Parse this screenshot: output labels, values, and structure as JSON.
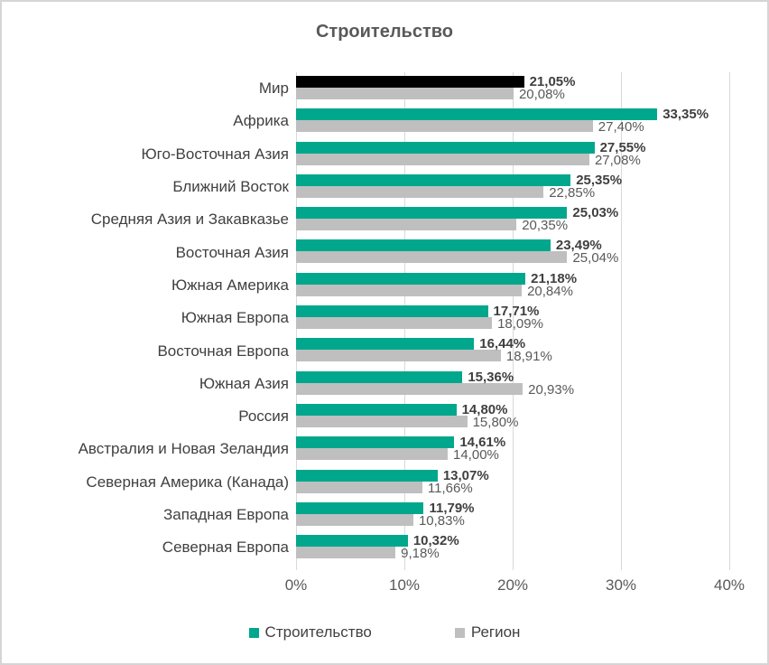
{
  "window": {
    "background": "#ffffff",
    "border_color": "#d6d4d4"
  },
  "chart_data": {
    "type": "bar",
    "orientation": "horizontal",
    "title": "Строительство",
    "title_color": "#595959",
    "grid": true,
    "legend_position": "bottom",
    "xlim": [
      0,
      40
    ],
    "x_ticks": [
      {
        "value": 0,
        "label": "0%"
      },
      {
        "value": 10,
        "label": "10%"
      },
      {
        "value": 20,
        "label": "20%"
      },
      {
        "value": 30,
        "label": "30%"
      },
      {
        "value": 40,
        "label": "40%"
      }
    ],
    "categories": [
      "Мир",
      "Африка",
      "Юго-Восточная Азия",
      "Ближний Восток",
      "Средняя Азия и Закавказье",
      "Восточная Азия",
      "Южная Америка",
      "Южная Европа",
      "Восточная Европа",
      "Южная Азия",
      "Россия",
      "Австралия и Новая Зеландия",
      "Северная Америка (Канада)",
      "Западная Европа",
      "Северная Европа"
    ],
    "series": [
      {
        "name": "Строительство",
        "color": "#00A78C",
        "values": [
          21.05,
          33.35,
          27.55,
          25.35,
          25.03,
          23.49,
          21.18,
          17.71,
          16.44,
          15.36,
          14.8,
          14.61,
          13.07,
          11.79,
          10.32
        ],
        "labels": [
          "21,05%",
          "33,35%",
          "27,55%",
          "25,35%",
          "25,03%",
          "23,49%",
          "21,18%",
          "17,71%",
          "16,44%",
          "15,36%",
          "14,80%",
          "14,61%",
          "13,07%",
          "11,79%",
          "10,32%"
        ]
      },
      {
        "name": "Регион",
        "color": "#BFBFBF",
        "values": [
          20.08,
          27.4,
          27.08,
          22.85,
          20.35,
          25.04,
          20.84,
          18.09,
          18.91,
          20.93,
          15.8,
          14.0,
          11.66,
          10.83,
          9.18
        ],
        "labels": [
          "20,08%",
          "27,40%",
          "27,08%",
          "22,85%",
          "20,35%",
          "25,04%",
          "20,84%",
          "18,09%",
          "18,91%",
          "20,93%",
          "15,80%",
          "14,00%",
          "11,66%",
          "10,83%",
          "9,18%"
        ]
      }
    ],
    "highlight": {
      "category_index": 0,
      "series_index": 0,
      "color": "#000000"
    },
    "colors": {
      "gridline": "#d9d9d9"
    }
  }
}
